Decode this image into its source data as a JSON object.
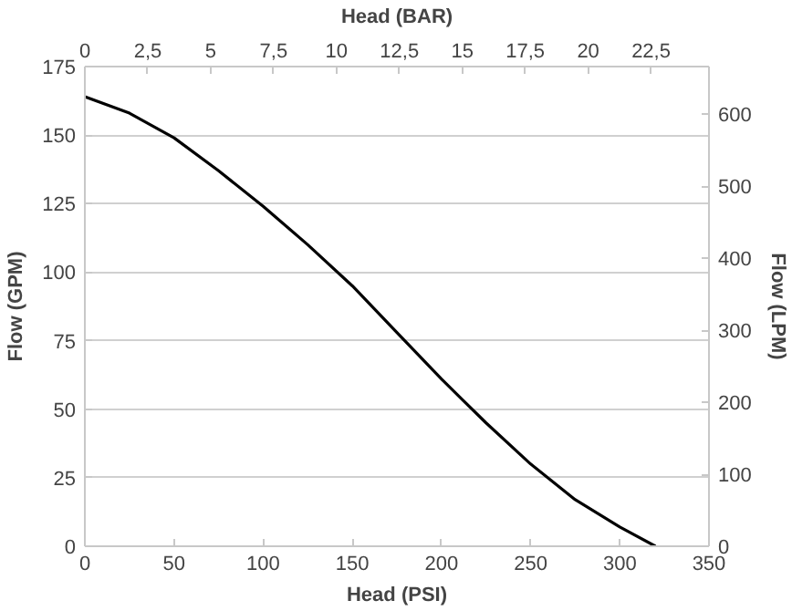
{
  "chart_data": {
    "type": "line",
    "xlabel": "Head (PSI)",
    "ylabel": "Flow (GPM)",
    "y2label": "Flow (LPM)",
    "x2label": "Head (BAR)",
    "x": [
      0,
      25,
      50,
      75,
      100,
      125,
      150,
      175,
      200,
      225,
      250,
      275,
      300,
      320
    ],
    "series": [
      {
        "color": "#000000",
        "values": [
          164,
          158,
          149,
          137,
          124,
          110,
          95,
          78,
          61,
          45,
          30,
          17,
          7,
          0
        ]
      }
    ],
    "xlim": [
      0,
      350
    ],
    "xticks": [
      0,
      50,
      100,
      150,
      200,
      250,
      300,
      350
    ],
    "ylim": [
      0,
      175
    ],
    "yticks": [
      0,
      25,
      50,
      75,
      100,
      125,
      150,
      175
    ],
    "y2lim": [
      0,
      666
    ],
    "y2ticks": [
      0,
      100,
      200,
      300,
      400,
      500,
      600
    ],
    "x2lim": [
      0,
      24.8
    ],
    "x2ticks": [
      0,
      {
        "value": 2.5,
        "label": "2,5"
      },
      5,
      {
        "value": 7.5,
        "label": "7,5"
      },
      10,
      {
        "value": 12.5,
        "label": "12,5"
      },
      15,
      {
        "value": 17.5,
        "label": "17,5"
      },
      20,
      {
        "value": 22.5,
        "label": "22,5"
      }
    ],
    "grid": "y",
    "marker": "none",
    "line_style": "solid"
  }
}
